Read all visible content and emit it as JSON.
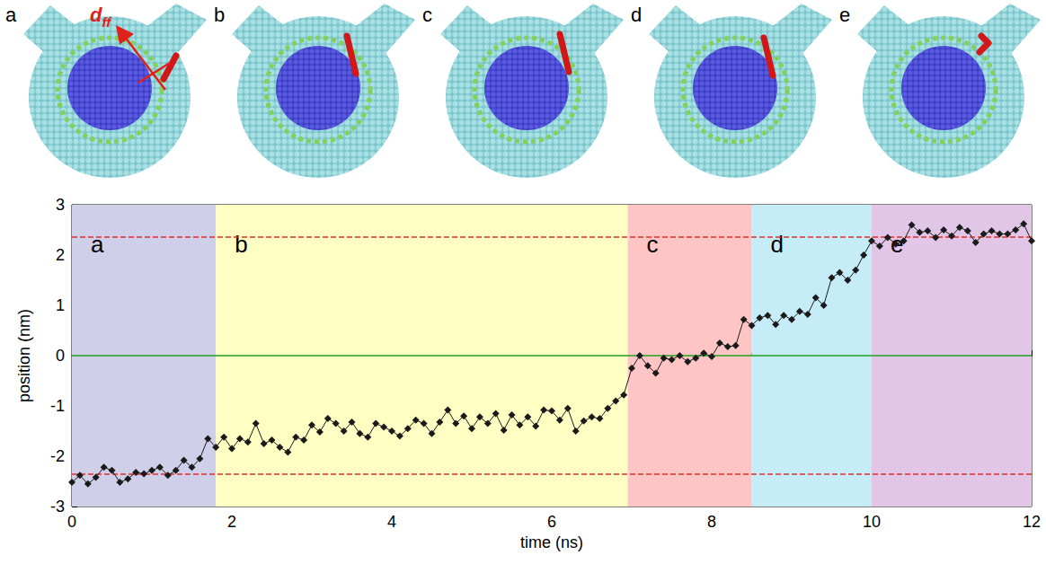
{
  "chart_data": {
    "type": "line",
    "x": [
      0,
      0.1,
      0.2,
      0.3,
      0.4,
      0.5,
      0.6,
      0.7,
      0.8,
      0.9,
      1,
      1.1,
      1.2,
      1.3,
      1.4,
      1.5,
      1.6,
      1.7,
      1.8,
      1.9,
      2,
      2.1,
      2.2,
      2.3,
      2.4,
      2.5,
      2.6,
      2.7,
      2.8,
      2.9,
      3,
      3.1,
      3.2,
      3.3,
      3.4,
      3.5,
      3.6,
      3.7,
      3.8,
      3.9,
      4,
      4.1,
      4.2,
      4.3,
      4.4,
      4.5,
      4.6,
      4.7,
      4.8,
      4.9,
      5,
      5.1,
      5.2,
      5.3,
      5.4,
      5.5,
      5.6,
      5.7,
      5.8,
      5.9,
      6,
      6.1,
      6.2,
      6.3,
      6.4,
      6.5,
      6.6,
      6.7,
      6.8,
      6.9,
      7,
      7.1,
      7.2,
      7.3,
      7.4,
      7.5,
      7.6,
      7.7,
      7.8,
      7.9,
      8,
      8.1,
      8.2,
      8.3,
      8.4,
      8.5,
      8.6,
      8.7,
      8.8,
      8.9,
      9,
      9.1,
      9.2,
      9.3,
      9.4,
      9.5,
      9.6,
      9.7,
      9.8,
      9.9,
      10,
      10.1,
      10.2,
      10.3,
      10.4,
      10.5,
      10.6,
      10.7,
      10.8,
      10.9,
      11,
      11.1,
      11.2,
      11.3,
      11.4,
      11.5,
      11.6,
      11.7,
      11.8,
      11.9,
      12
    ],
    "values": [
      -2.52,
      -2.38,
      -2.55,
      -2.42,
      -2.22,
      -2.28,
      -2.52,
      -2.45,
      -2.32,
      -2.35,
      -2.28,
      -2.22,
      -2.38,
      -2.28,
      -2.08,
      -2.22,
      -2.05,
      -1.65,
      -1.82,
      -1.62,
      -1.85,
      -1.65,
      -1.72,
      -1.35,
      -1.75,
      -1.68,
      -1.82,
      -1.92,
      -1.62,
      -1.68,
      -1.38,
      -1.52,
      -1.25,
      -1.35,
      -1.5,
      -1.32,
      -1.55,
      -1.62,
      -1.35,
      -1.42,
      -1.5,
      -1.6,
      -1.45,
      -1.28,
      -1.35,
      -1.55,
      -1.32,
      -1.08,
      -1.35,
      -1.2,
      -1.45,
      -1.22,
      -1.35,
      -1.15,
      -1.48,
      -1.18,
      -1.38,
      -1.22,
      -1.4,
      -1.08,
      -1.1,
      -1.28,
      -1.05,
      -1.5,
      -1.3,
      -1.22,
      -1.25,
      -1.05,
      -0.9,
      -0.78,
      -0.25,
      0,
      -0.2,
      -0.35,
      -0.05,
      -0.08,
      0,
      -0.12,
      -0.05,
      0.05,
      -0.02,
      0.25,
      0.18,
      0.2,
      0.72,
      0.6,
      0.75,
      0.8,
      0.62,
      0.8,
      0.72,
      0.88,
      0.82,
      1.15,
      1,
      1.55,
      1.65,
      1.5,
      1.7,
      2,
      2.28,
      2.18,
      2.35,
      2.22,
      2.28,
      2.6,
      2.45,
      2.48,
      2.35,
      2.5,
      2.38,
      2.55,
      2.48,
      2.25,
      2.42,
      2.48,
      2.42,
      2.42,
      2.5,
      2.62,
      2.28
    ],
    "color": "#1a1a1a",
    "marker": "diamond",
    "xlabel": "time (ns)",
    "ylabel": "position (nm)",
    "xlim": [
      0,
      12
    ],
    "ylim": [
      -3,
      3
    ],
    "xticks": [
      0,
      2,
      4,
      6,
      8,
      10,
      12
    ],
    "yticks": [
      -3,
      -2,
      -1,
      0,
      1,
      2,
      3
    ],
    "grid": false,
    "regions": [
      {
        "label": "a",
        "start": 0,
        "end": 1.8,
        "color": "#cfcfea"
      },
      {
        "label": "b",
        "start": 1.8,
        "end": 6.95,
        "color": "#ffffc4"
      },
      {
        "label": "c",
        "start": 6.95,
        "end": 8.5,
        "color": "#ffc4c4"
      },
      {
        "label": "d",
        "start": 8.5,
        "end": 10,
        "color": "#c6ecf8"
      },
      {
        "label": "e",
        "start": 10,
        "end": 12,
        "color": "#e2c6e8"
      }
    ],
    "reference_lines": [
      {
        "value": 2.36,
        "color": "#e0302a",
        "line_style": "dashed"
      },
      {
        "value": -2.36,
        "color": "#e0302a",
        "line_style": "dashed"
      },
      {
        "value": 0,
        "color": "#22a022",
        "line_style": "solid"
      }
    ]
  },
  "snapshots": {
    "labels": [
      "a",
      "b",
      "c",
      "d",
      "e"
    ],
    "annotation": {
      "text": "d",
      "subscript": "ff",
      "color": "#e0201a"
    }
  }
}
